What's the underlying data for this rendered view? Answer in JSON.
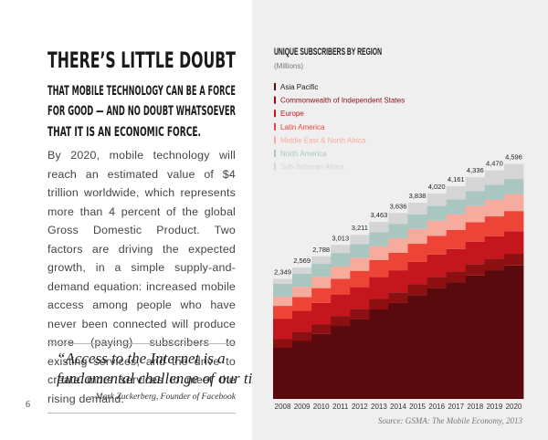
{
  "page": {
    "heading": [
      "THERE’S LITTLE DOUBT",
      "THAT MOBILE TECHNOLOGY CAN BE A FORCE",
      "FOR GOOD — AND NO DOUBT WHATSOEVER",
      "THAT IT IS AN ECONOMIC FORCE."
    ],
    "body": "By 2020, mobile technology will reach an estimated value of $4 trillion worldwide, which represents more than 4 percent of the global Gross Domestic Product. Two factors are driving the expected growth, in a simple supply-and-demand equation: increased mobile access among people who have never been connected will produce more (paying) subscribers to existing services, and the drive to create more services to meet the rising demand.",
    "quote": [
      "“Access to the Internet is a",
      "fundamental challenge of our time.”"
    ],
    "attribution": "- Mark Zuckerberg, Founder of Facebook",
    "page_number": 6
  },
  "chart_data": {
    "type": "stacked-step",
    "title": "UNIQUE SUBSCRIBERS BY REGION",
    "subtitle": "(Millions)",
    "source": "Source: GSMA: The Mobile Economy, 2013",
    "categories": [
      "2008",
      "2009",
      "2010",
      "2011",
      "2012",
      "2013",
      "2014",
      "2015",
      "2016",
      "2017",
      "2018",
      "2019",
      "2020"
    ],
    "ylim": [
      0,
      5000
    ],
    "series": [
      {
        "name": "Asia Pacific",
        "color": "#5a0a0c",
        "values": [
          1000,
          1134,
          1273,
          1428,
          1561,
          1750,
          1876,
          2033,
          2172,
          2276,
          2415,
          2517,
          2611
        ]
      },
      {
        "name": "Commonwealth of Independent States",
        "color": "#8c0f12",
        "values": [
          170,
          180,
          190,
          195,
          200,
          205,
          210,
          215,
          218,
          221,
          224,
          226,
          228
        ]
      },
      {
        "name": "Europe",
        "color": "#c4161c",
        "values": [
          400,
          410,
          415,
          420,
          425,
          428,
          430,
          432,
          434,
          436,
          438,
          440,
          442
        ]
      },
      {
        "name": "Latin America",
        "color": "#ee4438",
        "values": [
          250,
          270,
          290,
          305,
          320,
          335,
          345,
          355,
          365,
          373,
          381,
          388,
          395
        ]
      },
      {
        "name": "Middle East & North Africa",
        "color": "#f6ab9c",
        "values": [
          180,
          200,
          220,
          240,
          255,
          270,
          280,
          290,
          300,
          308,
          316,
          323,
          330
        ]
      },
      {
        "name": "North America",
        "color": "#a9c6c1",
        "values": [
          250,
          255,
          260,
          265,
          270,
          275,
          280,
          283,
          286,
          289,
          292,
          294,
          296
        ]
      },
      {
        "name": "Sub-Saharan Africa",
        "color": "#d5d5d5",
        "values": [
          99,
          120,
          140,
          160,
          180,
          200,
          215,
          230,
          245,
          258,
          270,
          282,
          294
        ]
      }
    ],
    "totals": [
      {
        "value": 2349,
        "label": "2,349"
      },
      {
        "value": 2569,
        "label": "2,569"
      },
      {
        "value": 2788,
        "label": "2,788"
      },
      {
        "value": 3013,
        "label": "3,013"
      },
      {
        "value": 3211,
        "label": "3,211"
      },
      {
        "value": 3463,
        "label": "3,463"
      },
      {
        "value": 3636,
        "label": "3,636"
      },
      {
        "value": 3838,
        "label": "3,838"
      },
      {
        "value": 4020,
        "label": "4,020"
      },
      {
        "value": 4161,
        "label": "4,161"
      },
      {
        "value": 4336,
        "label": "4,336"
      },
      {
        "value": 4470,
        "label": "4,470"
      },
      {
        "value": 4596,
        "label": "4,596"
      }
    ]
  }
}
